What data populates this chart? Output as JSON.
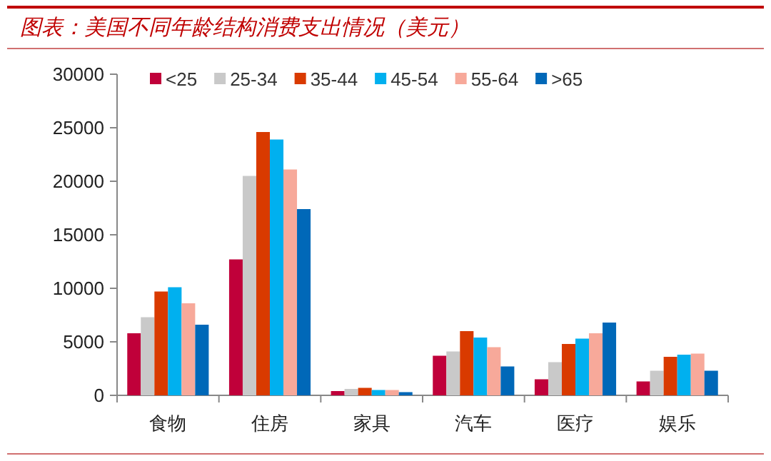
{
  "chart_data": {
    "type": "bar",
    "title": "图表：美国不同年龄结构消费支出情况（美元）",
    "categories": [
      "食物",
      "住房",
      "家具",
      "汽车",
      "医疗",
      "娱乐"
    ],
    "series": [
      {
        "name": "<25",
        "color": "#c0003a",
        "values": [
          5800,
          12700,
          400,
          3700,
          1500,
          1300
        ]
      },
      {
        "name": "25-34",
        "color": "#c9c9c9",
        "values": [
          7300,
          20500,
          600,
          4100,
          3100,
          2300
        ]
      },
      {
        "name": "35-44",
        "color": "#d93a00",
        "values": [
          9700,
          24600,
          700,
          6000,
          4800,
          3600
        ]
      },
      {
        "name": "45-54",
        "color": "#00b0ef",
        "values": [
          10100,
          23900,
          500,
          5400,
          5300,
          3800
        ]
      },
      {
        "name": "55-64",
        "color": "#f7a99a",
        "values": [
          8600,
          21100,
          500,
          4500,
          5800,
          3900
        ]
      },
      {
        "name": ">65",
        "color": "#0068b8",
        "values": [
          6600,
          17400,
          300,
          2700,
          6800,
          2300
        ]
      }
    ],
    "ylim": [
      0,
      30000
    ],
    "yticks": [
      0,
      5000,
      10000,
      15000,
      20000,
      25000,
      30000
    ],
    "grid": false,
    "legend": "top"
  }
}
